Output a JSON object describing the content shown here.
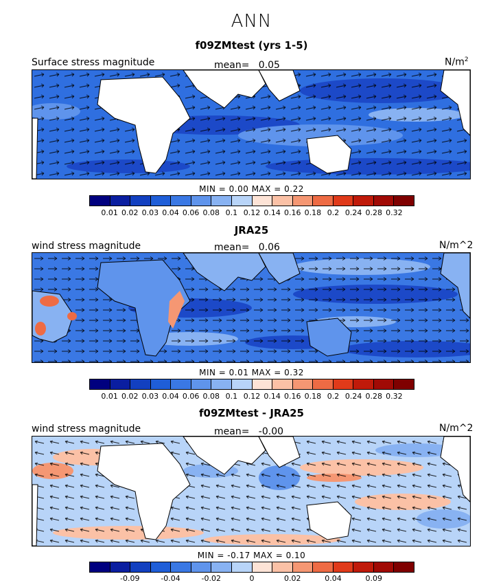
{
  "header": {
    "season": "ANN"
  },
  "panels": [
    {
      "title": "f09ZMtest (yrs 1-5)",
      "left_label": "Surface stress magnitude",
      "mean_label": "mean=",
      "mean_value": "0.05",
      "units": "N/m",
      "units_sup": "2",
      "stats_text": "MIN =    0.00  MAX =    0.22",
      "min": 0.0,
      "max": 0.22
    },
    {
      "title": "JRA25",
      "left_label": "wind stress magnitude",
      "mean_label": "mean=",
      "mean_value": "0.06",
      "units": "N/m^2",
      "units_sup": "",
      "stats_text": "MIN =    0.01  MAX =    0.32",
      "min": 0.01,
      "max": 0.32
    },
    {
      "title": "f09ZMtest - JRA25",
      "left_label": "wind stress magnitude",
      "mean_label": "mean=",
      "mean_value": "-0.00",
      "units": "N/m^2",
      "units_sup": "",
      "stats_text": "MIN =  -0.17  MAX =    0.10",
      "min": -0.17,
      "max": 0.1
    }
  ],
  "colorbars": [
    {
      "colors": [
        "#00007f",
        "#0a1ea0",
        "#1240c0",
        "#1f5ed8",
        "#3a78e4",
        "#5f94ec",
        "#88b2f2",
        "#b8d4f8",
        "#fde3d6",
        "#fbc1a6",
        "#f59773",
        "#ee6b44",
        "#e03a1a",
        "#c01a0a",
        "#a10a05",
        "#7f0000"
      ],
      "labels": [
        "0.01",
        "0.02",
        "0.03",
        "0.04",
        "0.06",
        "0.08",
        "0.1",
        "0.12",
        "0.14",
        "0.16",
        "0.18",
        "0.2",
        "0.24",
        "0.28",
        "0.32"
      ]
    },
    {
      "colors": [
        "#00007f",
        "#0a1ea0",
        "#1240c0",
        "#1f5ed8",
        "#3a78e4",
        "#5f94ec",
        "#88b2f2",
        "#b8d4f8",
        "#fde3d6",
        "#fbc1a6",
        "#f59773",
        "#ee6b44",
        "#e03a1a",
        "#c01a0a",
        "#a10a05",
        "#7f0000"
      ],
      "labels": [
        "0.01",
        "0.02",
        "0.03",
        "0.04",
        "0.06",
        "0.08",
        "0.1",
        "0.12",
        "0.14",
        "0.16",
        "0.18",
        "0.2",
        "0.24",
        "0.28",
        "0.32"
      ]
    },
    {
      "colors": [
        "#00007f",
        "#0a1ea0",
        "#1240c0",
        "#1f5ed8",
        "#3a78e4",
        "#5f94ec",
        "#88b2f2",
        "#b8d4f8",
        "#fde3d6",
        "#fbc1a6",
        "#f59773",
        "#ee6b44",
        "#e03a1a",
        "#c01a0a",
        "#a10a05",
        "#7f0000"
      ],
      "labels": [
        "",
        "-0.09",
        "",
        "-0.04",
        "",
        "-0.02",
        "",
        "0",
        "",
        "0.02",
        "",
        "0.04",
        "",
        "0.09",
        ""
      ]
    }
  ],
  "chart_data": [
    {
      "type": "heatmap",
      "title": "f09ZMtest (yrs 1-5)",
      "variable": "Surface stress magnitude",
      "units": "N/m2",
      "mean": 0.05,
      "min": 0.0,
      "max": 0.22,
      "levels": [
        0.01,
        0.02,
        0.03,
        0.04,
        0.06,
        0.08,
        0.1,
        0.12,
        0.14,
        0.16,
        0.18,
        0.2,
        0.24,
        0.28,
        0.32
      ]
    },
    {
      "type": "heatmap",
      "title": "JRA25",
      "variable": "wind stress magnitude",
      "units": "N/m^2",
      "mean": 0.06,
      "min": 0.01,
      "max": 0.32,
      "levels": [
        0.01,
        0.02,
        0.03,
        0.04,
        0.06,
        0.08,
        0.1,
        0.12,
        0.14,
        0.16,
        0.18,
        0.2,
        0.24,
        0.28,
        0.32
      ]
    },
    {
      "type": "heatmap",
      "title": "f09ZMtest - JRA25",
      "variable": "wind stress magnitude",
      "units": "N/m^2",
      "mean": -0.0,
      "min": -0.17,
      "max": 0.1,
      "levels_shown": [
        -0.09,
        -0.04,
        -0.02,
        0,
        0.02,
        0.04,
        0.09
      ]
    }
  ]
}
